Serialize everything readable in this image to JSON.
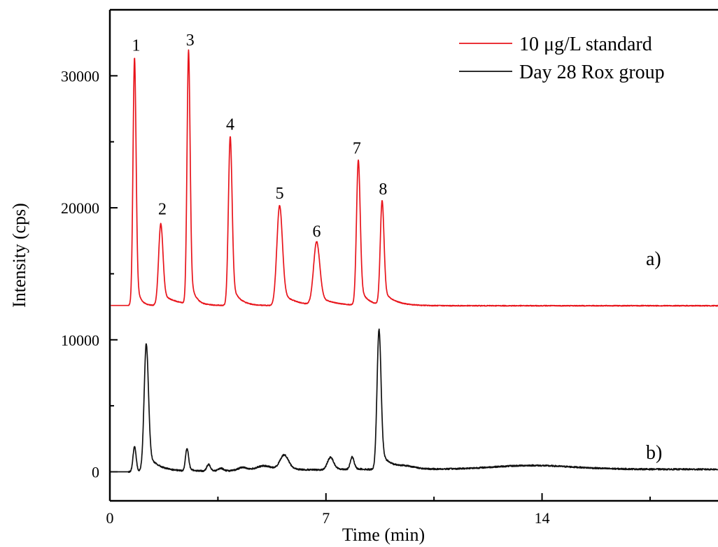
{
  "chart_data": {
    "type": "line",
    "xlabel": "Time (min)",
    "ylabel": "Intensity  (cps)",
    "xlim": [
      0,
      19.7
    ],
    "ylim": [
      -2200,
      35000
    ],
    "x_ticks": [
      "0",
      "7",
      "14"
    ],
    "y_ticks": [
      "0",
      "10000",
      "20000",
      "30000"
    ],
    "legend_position": "top-right",
    "series": [
      {
        "name": "10 μg/L standard",
        "color": "#e8141b",
        "trace_label": "a)",
        "baseline": 12600,
        "tail_baseline": 12580,
        "peaks": [
          {
            "x": 0.8,
            "height": 18800,
            "width": 0.05,
            "tail": 0.04
          },
          {
            "x": 1.65,
            "height": 6200,
            "width": 0.07,
            "tail": 0.16
          },
          {
            "x": 2.55,
            "height": 19200,
            "width": 0.05,
            "tail": 0.05
          },
          {
            "x": 3.9,
            "height": 12800,
            "width": 0.06,
            "tail": 0.08
          },
          {
            "x": 5.5,
            "height": 7600,
            "width": 0.09,
            "tail": 0.14
          },
          {
            "x": 6.7,
            "height": 4800,
            "width": 0.1,
            "tail": 0.16
          },
          {
            "x": 8.05,
            "height": 11000,
            "width": 0.06,
            "tail": 0.08
          },
          {
            "x": 8.82,
            "height": 7900,
            "width": 0.06,
            "tail": 0.12
          }
        ]
      },
      {
        "name": "Day 28 Rox group",
        "color": "#111111",
        "trace_label": "b)",
        "baseline": 0,
        "tail_baseline": 180,
        "peaks": [
          {
            "x": 0.8,
            "height": 1900,
            "width": 0.05,
            "tail": 0.03
          },
          {
            "x": 1.18,
            "height": 9700,
            "width": 0.07,
            "tail": 0.12
          },
          {
            "x": 2.5,
            "height": 1700,
            "width": 0.05,
            "tail": 0.05
          },
          {
            "x": 3.2,
            "height": 500,
            "width": 0.06,
            "tail": 0.06
          },
          {
            "x": 3.6,
            "height": 200,
            "width": 0.08,
            "tail": 0.08
          },
          {
            "x": 4.3,
            "height": 250,
            "width": 0.15,
            "tail": 0.15
          },
          {
            "x": 5.0,
            "height": 350,
            "width": 0.25,
            "tail": 0.2
          },
          {
            "x": 5.65,
            "height": 1150,
            "width": 0.14,
            "tail": 0.15
          },
          {
            "x": 7.15,
            "height": 950,
            "width": 0.1,
            "tail": 0.12
          },
          {
            "x": 7.85,
            "height": 950,
            "width": 0.06,
            "tail": 0.07
          },
          {
            "x": 8.72,
            "height": 10600,
            "width": 0.065,
            "tail": 0.1
          },
          {
            "x": 9.6,
            "height": 200,
            "width": 0.3,
            "tail": 0.3
          },
          {
            "x": 13.7,
            "height": 300,
            "width": 1.3,
            "tail": 1.0
          }
        ]
      }
    ],
    "peak_labels": [
      {
        "text": "1",
        "x": 0.85,
        "y": 31900
      },
      {
        "text": "2",
        "x": 1.7,
        "y": 19500
      },
      {
        "text": "3",
        "x": 2.6,
        "y": 32300
      },
      {
        "text": "4",
        "x": 3.9,
        "y": 25900
      },
      {
        "text": "5",
        "x": 5.5,
        "y": 20700
      },
      {
        "text": "6",
        "x": 6.7,
        "y": 17800
      },
      {
        "text": "7",
        "x": 8.0,
        "y": 24100
      },
      {
        "text": "8",
        "x": 8.85,
        "y": 21000
      }
    ]
  }
}
